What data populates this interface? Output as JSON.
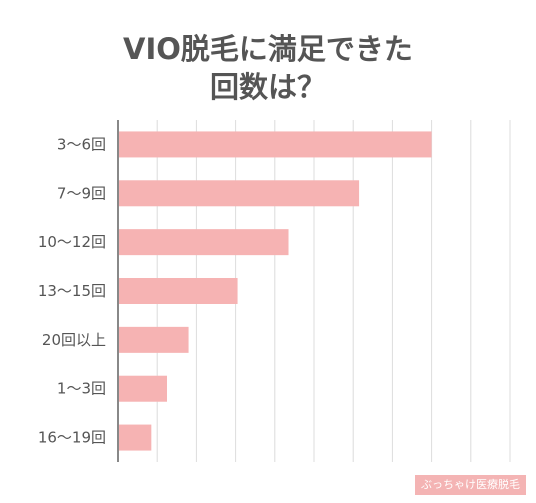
{
  "chart_data": {
    "type": "bar",
    "orientation": "horizontal",
    "title": [
      "VIO脱毛に満足できた",
      "回数は？"
    ],
    "categories": [
      "3〜6回",
      "7〜9回",
      "10〜12回",
      "13〜15回",
      "20回以上",
      "1〜3回",
      "16〜19回"
    ],
    "values": [
      16.0,
      12.3,
      8.7,
      6.1,
      3.6,
      2.5,
      1.7
    ],
    "xlim": [
      0,
      20
    ],
    "grid": true,
    "bar_color": "#f6b3b3",
    "grid_color": "#dcdcdc",
    "axis_color": "#888888",
    "label_color": "#555555"
  },
  "watermark": "ぶっちゃけ医療脱毛"
}
